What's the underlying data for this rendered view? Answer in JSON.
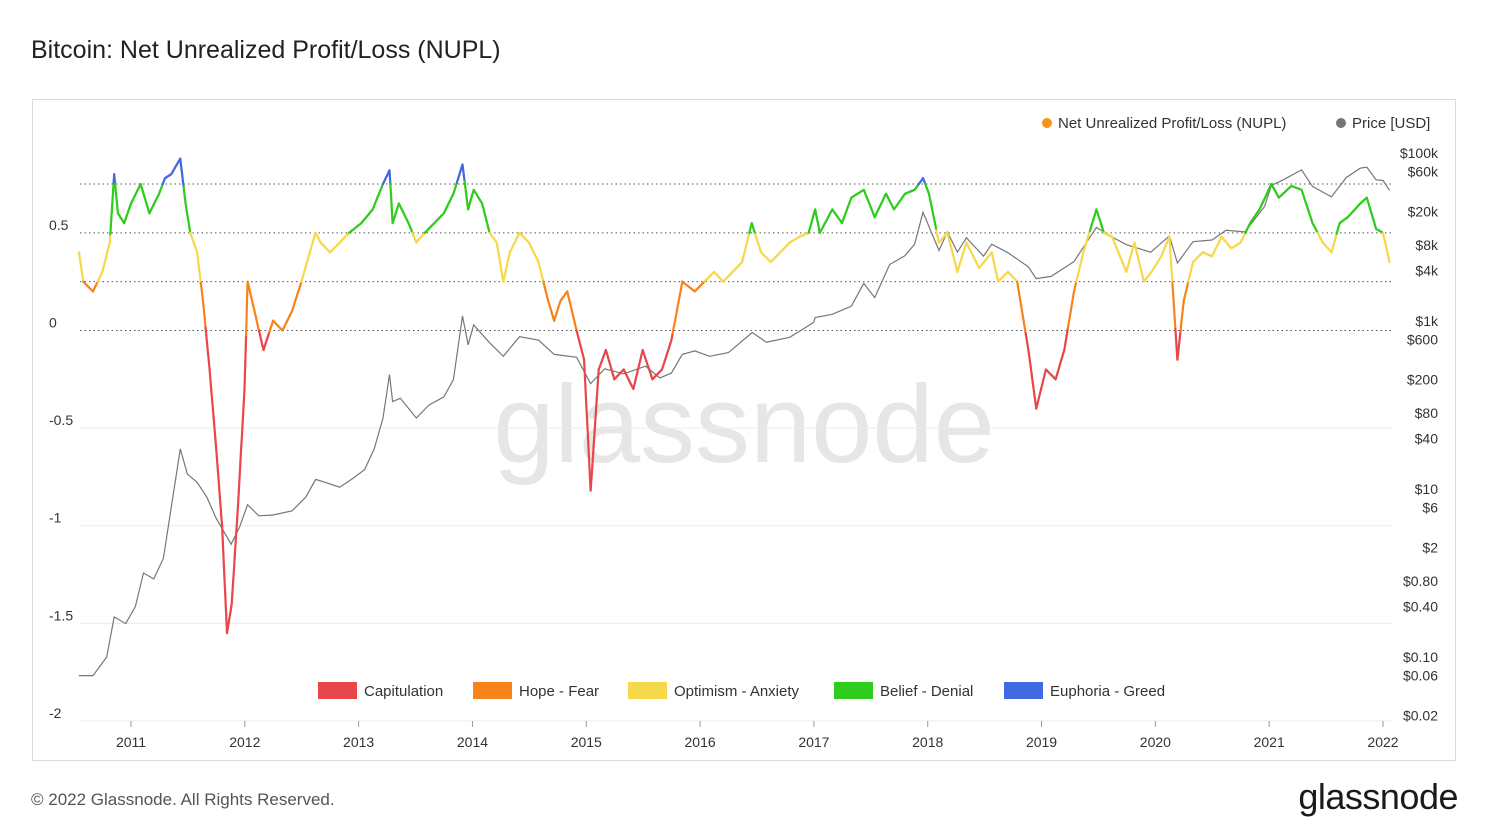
{
  "header": {
    "title": "Bitcoin: Net Unrealized Profit/Loss (NUPL)"
  },
  "footer": {
    "copyright": "© 2022 Glassnode. All Rights Reserved.",
    "brand": "glassnode"
  },
  "watermark": "glassnode",
  "chart_data": {
    "type": "line",
    "title": "Bitcoin: Net Unrealized Profit/Loss (NUPL)",
    "legend_top": [
      {
        "label": "Net Unrealized Profit/Loss (NUPL)",
        "color": "#f7931a"
      },
      {
        "label": "Price [USD]",
        "color": "#777777"
      }
    ],
    "legend_bottom": [
      {
        "label": "Capitulation",
        "color": "#e8464a",
        "range": [
          -2,
          0
        ]
      },
      {
        "label": "Hope - Fear",
        "color": "#f8831a",
        "range": [
          0,
          0.25
        ]
      },
      {
        "label": "Optimism - Anxiety",
        "color": "#f5d94a",
        "range": [
          0.25,
          0.5
        ]
      },
      {
        "label": "Belief - Denial",
        "color": "#2ecc1c",
        "range": [
          0.5,
          0.75
        ]
      },
      {
        "label": "Euphoria - Greed",
        "color": "#4169e1",
        "range": [
          0.75,
          1
        ]
      }
    ],
    "x_ticks": [
      "2011",
      "2012",
      "2013",
      "2014",
      "2015",
      "2016",
      "2017",
      "2018",
      "2019",
      "2020",
      "2021",
      "2022"
    ],
    "y_left_ticks": [
      "0.5",
      "0",
      "-0.5",
      "-1",
      "-1.5",
      "-2"
    ],
    "y_right_ticks": [
      "$100k",
      "$60k",
      "$20k",
      "$8k",
      "$4k",
      "$1k",
      "$600",
      "$200",
      "$80",
      "$40",
      "$10",
      "$6",
      "$2",
      "$0.80",
      "$0.40",
      "$0.10",
      "$0.06",
      "$0.02"
    ],
    "y_left_range": [
      -2,
      0.85
    ],
    "y_right_range": [
      0.02,
      100000
    ],
    "y_right_scale": "log",
    "reference_lines": [
      0,
      0.25,
      0.5,
      0.75
    ],
    "grid": true,
    "nupl": [
      [
        "2010-07-18",
        0.4
      ],
      [
        "2010-08-01",
        0.25
      ],
      [
        "2010-09-01",
        0.2
      ],
      [
        "2010-10-01",
        0.3
      ],
      [
        "2010-10-25",
        0.45
      ],
      [
        "2010-11-08",
        0.8
      ],
      [
        "2010-11-20",
        0.6
      ],
      [
        "2010-12-10",
        0.55
      ],
      [
        "2011-01-01",
        0.65
      ],
      [
        "2011-02-01",
        0.75
      ],
      [
        "2011-03-01",
        0.6
      ],
      [
        "2011-04-01",
        0.7
      ],
      [
        "2011-04-20",
        0.78
      ],
      [
        "2011-05-10",
        0.8
      ],
      [
        "2011-06-08",
        0.88
      ],
      [
        "2011-06-25",
        0.65
      ],
      [
        "2011-07-10",
        0.5
      ],
      [
        "2011-08-01",
        0.4
      ],
      [
        "2011-08-20",
        0.15
      ],
      [
        "2011-09-10",
        -0.2
      ],
      [
        "2011-10-01",
        -0.6
      ],
      [
        "2011-10-20",
        -1.0
      ],
      [
        "2011-11-05",
        -1.55
      ],
      [
        "2011-11-20",
        -1.4
      ],
      [
        "2011-12-10",
        -0.9
      ],
      [
        "2011-12-31",
        -0.3
      ],
      [
        "2012-01-10",
        0.25
      ],
      [
        "2012-02-01",
        0.1
      ],
      [
        "2012-03-01",
        -0.1
      ],
      [
        "2012-04-01",
        0.05
      ],
      [
        "2012-05-01",
        0.0
      ],
      [
        "2012-06-01",
        0.1
      ],
      [
        "2012-07-01",
        0.25
      ],
      [
        "2012-08-15",
        0.5
      ],
      [
        "2012-09-01",
        0.45
      ],
      [
        "2012-10-01",
        0.4
      ],
      [
        "2012-11-01",
        0.45
      ],
      [
        "2012-12-01",
        0.5
      ],
      [
        "2013-01-10",
        0.55
      ],
      [
        "2013-02-15",
        0.62
      ],
      [
        "2013-03-20",
        0.75
      ],
      [
        "2013-04-10",
        0.82
      ],
      [
        "2013-04-20",
        0.55
      ],
      [
        "2013-05-10",
        0.65
      ],
      [
        "2013-06-10",
        0.55
      ],
      [
        "2013-07-05",
        0.45
      ],
      [
        "2013-08-01",
        0.5
      ],
      [
        "2013-09-01",
        0.55
      ],
      [
        "2013-10-01",
        0.6
      ],
      [
        "2013-11-01",
        0.7
      ],
      [
        "2013-11-30",
        0.85
      ],
      [
        "2013-12-18",
        0.62
      ],
      [
        "2014-01-05",
        0.72
      ],
      [
        "2014-02-01",
        0.65
      ],
      [
        "2014-02-25",
        0.5
      ],
      [
        "2014-03-20",
        0.45
      ],
      [
        "2014-04-10",
        0.25
      ],
      [
        "2014-05-01",
        0.4
      ],
      [
        "2014-06-01",
        0.5
      ],
      [
        "2014-07-01",
        0.45
      ],
      [
        "2014-08-01",
        0.35
      ],
      [
        "2014-09-01",
        0.15
      ],
      [
        "2014-09-20",
        0.05
      ],
      [
        "2014-10-10",
        0.15
      ],
      [
        "2014-11-01",
        0.2
      ],
      [
        "2014-12-01",
        0.0
      ],
      [
        "2014-12-25",
        -0.15
      ],
      [
        "2015-01-15",
        -0.82
      ],
      [
        "2015-02-10",
        -0.2
      ],
      [
        "2015-03-05",
        -0.1
      ],
      [
        "2015-04-01",
        -0.25
      ],
      [
        "2015-05-01",
        -0.2
      ],
      [
        "2015-06-01",
        -0.3
      ],
      [
        "2015-07-01",
        -0.1
      ],
      [
        "2015-08-01",
        -0.25
      ],
      [
        "2015-09-01",
        -0.2
      ],
      [
        "2015-10-01",
        -0.05
      ],
      [
        "2015-11-05",
        0.25
      ],
      [
        "2015-12-15",
        0.2
      ],
      [
        "2016-01-15",
        0.25
      ],
      [
        "2016-02-15",
        0.3
      ],
      [
        "2016-03-15",
        0.25
      ],
      [
        "2016-04-15",
        0.3
      ],
      [
        "2016-05-15",
        0.35
      ],
      [
        "2016-06-15",
        0.55
      ],
      [
        "2016-07-15",
        0.4
      ],
      [
        "2016-08-15",
        0.35
      ],
      [
        "2016-09-15",
        0.4
      ],
      [
        "2016-10-15",
        0.45
      ],
      [
        "2016-11-15",
        0.48
      ],
      [
        "2016-12-15",
        0.5
      ],
      [
        "2017-01-05",
        0.62
      ],
      [
        "2017-01-20",
        0.5
      ],
      [
        "2017-03-01",
        0.62
      ],
      [
        "2017-04-01",
        0.55
      ],
      [
        "2017-05-01",
        0.68
      ],
      [
        "2017-06-10",
        0.72
      ],
      [
        "2017-07-15",
        0.58
      ],
      [
        "2017-08-20",
        0.7
      ],
      [
        "2017-09-15",
        0.62
      ],
      [
        "2017-10-20",
        0.7
      ],
      [
        "2017-11-20",
        0.72
      ],
      [
        "2017-12-17",
        0.78
      ],
      [
        "2018-01-05",
        0.7
      ],
      [
        "2018-02-06",
        0.45
      ],
      [
        "2018-03-05",
        0.5
      ],
      [
        "2018-04-06",
        0.3
      ],
      [
        "2018-05-05",
        0.45
      ],
      [
        "2018-06-15",
        0.32
      ],
      [
        "2018-07-25",
        0.4
      ],
      [
        "2018-08-15",
        0.25
      ],
      [
        "2018-09-15",
        0.3
      ],
      [
        "2018-10-15",
        0.25
      ],
      [
        "2018-11-20",
        -0.1
      ],
      [
        "2018-12-15",
        -0.4
      ],
      [
        "2019-01-15",
        -0.2
      ],
      [
        "2019-02-15",
        -0.25
      ],
      [
        "2019-03-15",
        -0.1
      ],
      [
        "2019-04-15",
        0.2
      ],
      [
        "2019-05-15",
        0.4
      ],
      [
        "2019-06-26",
        0.62
      ],
      [
        "2019-07-20",
        0.5
      ],
      [
        "2019-08-15",
        0.48
      ],
      [
        "2019-09-30",
        0.3
      ],
      [
        "2019-10-26",
        0.45
      ],
      [
        "2019-11-25",
        0.25
      ],
      [
        "2019-12-20",
        0.3
      ],
      [
        "2020-01-20",
        0.38
      ],
      [
        "2020-02-15",
        0.48
      ],
      [
        "2020-03-12",
        -0.15
      ],
      [
        "2020-04-01",
        0.15
      ],
      [
        "2020-05-01",
        0.35
      ],
      [
        "2020-06-01",
        0.4
      ],
      [
        "2020-07-01",
        0.38
      ],
      [
        "2020-08-01",
        0.48
      ],
      [
        "2020-09-01",
        0.42
      ],
      [
        "2020-10-01",
        0.45
      ],
      [
        "2020-11-01",
        0.55
      ],
      [
        "2020-12-01",
        0.62
      ],
      [
        "2021-01-08",
        0.75
      ],
      [
        "2021-02-01",
        0.68
      ],
      [
        "2021-03-13",
        0.74
      ],
      [
        "2021-04-15",
        0.72
      ],
      [
        "2021-05-20",
        0.55
      ],
      [
        "2021-06-22",
        0.45
      ],
      [
        "2021-07-20",
        0.4
      ],
      [
        "2021-08-15",
        0.55
      ],
      [
        "2021-09-10",
        0.58
      ],
      [
        "2021-10-20",
        0.65
      ],
      [
        "2021-11-10",
        0.68
      ],
      [
        "2021-12-10",
        0.52
      ],
      [
        "2022-01-01",
        0.5
      ],
      [
        "2022-01-22",
        0.35
      ]
    ],
    "price": [
      [
        "2010-07-18",
        0.06
      ],
      [
        "2010-09-01",
        0.06
      ],
      [
        "2010-10-15",
        0.1
      ],
      [
        "2010-11-08",
        0.3
      ],
      [
        "2010-12-15",
        0.25
      ],
      [
        "2011-01-15",
        0.4
      ],
      [
        "2011-02-10",
        1.0
      ],
      [
        "2011-03-15",
        0.85
      ],
      [
        "2011-04-15",
        1.5
      ],
      [
        "2011-05-10",
        6.0
      ],
      [
        "2011-06-08",
        30
      ],
      [
        "2011-07-01",
        15
      ],
      [
        "2011-08-01",
        12
      ],
      [
        "2011-09-01",
        8
      ],
      [
        "2011-10-01",
        4.5
      ],
      [
        "2011-11-18",
        2.2
      ],
      [
        "2011-12-15",
        3.5
      ],
      [
        "2012-01-10",
        6.5
      ],
      [
        "2012-02-15",
        4.8
      ],
      [
        "2012-04-01",
        4.9
      ],
      [
        "2012-06-01",
        5.5
      ],
      [
        "2012-07-15",
        8.0
      ],
      [
        "2012-08-16",
        13
      ],
      [
        "2012-09-15",
        12
      ],
      [
        "2012-11-01",
        10.5
      ],
      [
        "2012-12-15",
        13.5
      ],
      [
        "2013-01-20",
        17
      ],
      [
        "2013-02-20",
        30
      ],
      [
        "2013-03-20",
        70
      ],
      [
        "2013-04-10",
        230
      ],
      [
        "2013-04-20",
        110
      ],
      [
        "2013-05-15",
        120
      ],
      [
        "2013-07-05",
        70
      ],
      [
        "2013-08-15",
        100
      ],
      [
        "2013-10-01",
        125
      ],
      [
        "2013-11-01",
        200
      ],
      [
        "2013-11-30",
        1150
      ],
      [
        "2013-12-18",
        520
      ],
      [
        "2014-01-05",
        900
      ],
      [
        "2014-02-25",
        550
      ],
      [
        "2014-04-10",
        380
      ],
      [
        "2014-06-01",
        650
      ],
      [
        "2014-08-01",
        590
      ],
      [
        "2014-09-20",
        400
      ],
      [
        "2014-12-01",
        370
      ],
      [
        "2015-01-15",
        180
      ],
      [
        "2015-03-01",
        270
      ],
      [
        "2015-05-01",
        235
      ],
      [
        "2015-07-10",
        290
      ],
      [
        "2015-08-25",
        210
      ],
      [
        "2015-10-01",
        240
      ],
      [
        "2015-11-05",
        400
      ],
      [
        "2015-12-15",
        440
      ],
      [
        "2016-02-01",
        380
      ],
      [
        "2016-04-01",
        420
      ],
      [
        "2016-06-17",
        730
      ],
      [
        "2016-08-01",
        560
      ],
      [
        "2016-10-15",
        640
      ],
      [
        "2016-12-31",
        960
      ],
      [
        "2017-01-05",
        1100
      ],
      [
        "2017-03-01",
        1200
      ],
      [
        "2017-05-01",
        1500
      ],
      [
        "2017-06-10",
        2800
      ],
      [
        "2017-07-15",
        1900
      ],
      [
        "2017-09-01",
        4700
      ],
      [
        "2017-10-20",
        6000
      ],
      [
        "2017-11-20",
        8200
      ],
      [
        "2017-12-17",
        19700
      ],
      [
        "2018-02-06",
        6900
      ],
      [
        "2018-03-05",
        11500
      ],
      [
        "2018-04-06",
        6600
      ],
      [
        "2018-05-05",
        9800
      ],
      [
        "2018-06-29",
        5900
      ],
      [
        "2018-07-25",
        8200
      ],
      [
        "2018-09-15",
        6500
      ],
      [
        "2018-11-20",
        4400
      ],
      [
        "2018-12-15",
        3200
      ],
      [
        "2019-02-01",
        3400
      ],
      [
        "2019-04-15",
        5100
      ],
      [
        "2019-06-26",
        13000
      ],
      [
        "2019-08-15",
        10000
      ],
      [
        "2019-09-30",
        8100
      ],
      [
        "2019-12-17",
        6600
      ],
      [
        "2020-02-15",
        10300
      ],
      [
        "2020-03-12",
        4900
      ],
      [
        "2020-05-01",
        8800
      ],
      [
        "2020-07-01",
        9200
      ],
      [
        "2020-08-15",
        12000
      ],
      [
        "2020-10-15",
        11500
      ],
      [
        "2020-12-17",
        23000
      ],
      [
        "2021-01-08",
        41000
      ],
      [
        "2021-02-15",
        48000
      ],
      [
        "2021-04-15",
        63000
      ],
      [
        "2021-05-20",
        40000
      ],
      [
        "2021-07-20",
        30000
      ],
      [
        "2021-09-05",
        51000
      ],
      [
        "2021-10-20",
        66000
      ],
      [
        "2021-11-10",
        68000
      ],
      [
        "2021-12-10",
        48000
      ],
      [
        "2022-01-01",
        47000
      ],
      [
        "2022-01-22",
        36000
      ]
    ]
  }
}
